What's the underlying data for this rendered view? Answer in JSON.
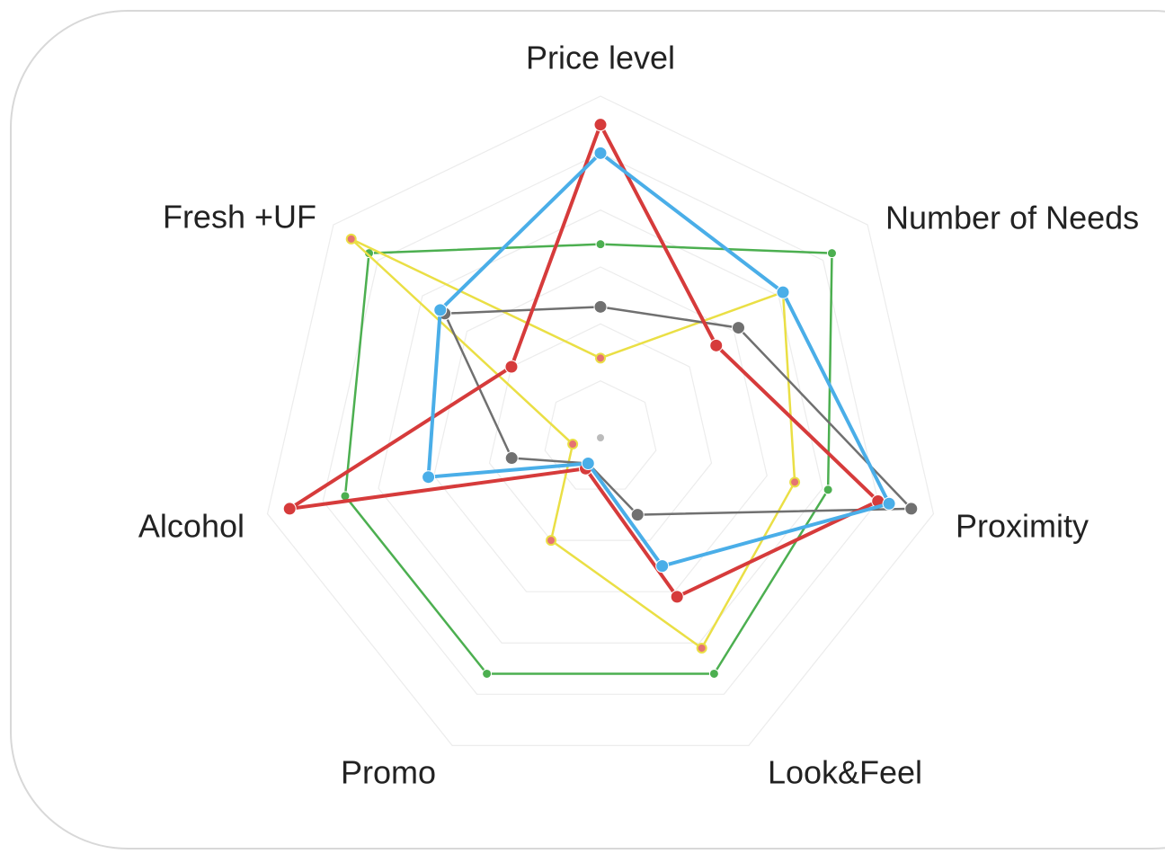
{
  "chart_data": {
    "type": "radar",
    "categories": [
      "Price level",
      "Number of Needs",
      "Proximity",
      "Look&Feel",
      "Promo",
      "Alcohol",
      "Fresh +UF"
    ],
    "rlim": [
      0,
      6
    ],
    "rticks": [
      1,
      2,
      3,
      4,
      5,
      6
    ],
    "grid": true,
    "series": [
      {
        "color": "#4caf50",
        "values": [
          3.4,
          5.2,
          4.1,
          4.6,
          4.6,
          4.6,
          5.2
        ]
      },
      {
        "color": "#eadf45",
        "marker_color": "#e57373",
        "values": [
          1.4,
          4.1,
          3.5,
          4.1,
          2.0,
          0.5,
          5.6
        ]
      },
      {
        "color": "#707070",
        "values": [
          2.3,
          3.1,
          5.6,
          1.5,
          0.5,
          1.6,
          3.5
        ]
      },
      {
        "color": "#d63b3b",
        "values": [
          5.5,
          2.6,
          5.0,
          3.1,
          0.6,
          5.6,
          2.0
        ]
      },
      {
        "color": "#4aaee8",
        "values": [
          5.0,
          4.1,
          5.2,
          2.5,
          0.5,
          3.1,
          3.6
        ]
      }
    ]
  }
}
